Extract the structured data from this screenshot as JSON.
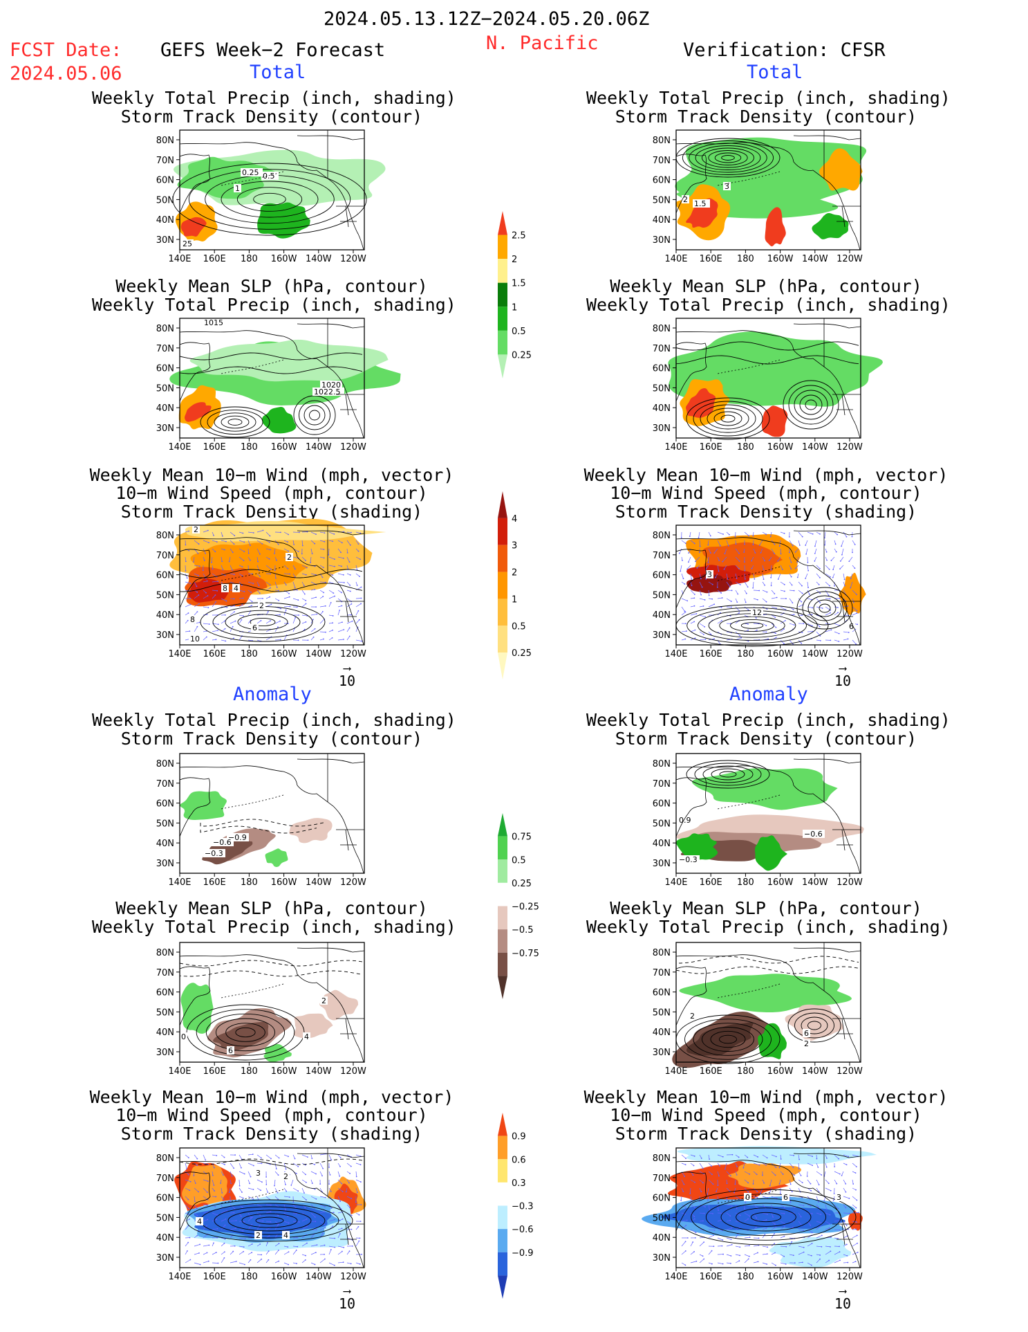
{
  "header": {
    "period": "2024.05.13.12Z−2024.05.20.06Z",
    "region": "N. Pacific",
    "fcst_label": "FCST Date:",
    "fcst_date": "2024.05.06",
    "left_title": "GEFS Week−2 Forecast",
    "right_title": "Verification: CFSR"
  },
  "sections": {
    "total": "Total",
    "anomaly": "Anomaly"
  },
  "titles": {
    "precip_storm": [
      "Weekly Total Precip (inch, shading)",
      "Storm Track Density (contour)"
    ],
    "slp_precip": [
      "Weekly Mean SLP (hPa, contour)",
      "Weekly Total Precip (inch, shading)"
    ],
    "wind_storm": [
      "Weekly Mean 10−m Wind (mph, vector)",
      "10−m Wind Speed (mph, contour)",
      "Storm Track Density (shading)"
    ]
  },
  "axes": {
    "lon_ticks": [
      "140E",
      "160E",
      "180",
      "160W",
      "140W",
      "120W"
    ],
    "lat_ticks": [
      "80N",
      "70N",
      "60N",
      "50N",
      "40N",
      "30N"
    ]
  },
  "vector_scale": "10",
  "colorbars": {
    "precip_total": {
      "levels": [
        "0.25",
        "0.5",
        "1",
        "1.5",
        "2",
        "2.5"
      ],
      "colors": [
        "#b4f0b4",
        "#64dc64",
        "#1eb41e",
        "#0a7d0a",
        "#fff08c",
        "#ffa800",
        "#f03c1e"
      ]
    },
    "storm_total": {
      "levels": [
        "0.25",
        "0.5",
        "1",
        "2",
        "3",
        "4"
      ],
      "colors": [
        "#fff8c0",
        "#ffe080",
        "#ffbe3c",
        "#ff9600",
        "#f05a0a",
        "#d21e0a",
        "#961410"
      ]
    },
    "precip_anom": {
      "levels": [
        "0.75",
        "0.5",
        "0.25",
        "−0.25",
        "−0.5",
        "−0.75"
      ],
      "colors": [
        "#1eaa32",
        "#50d250",
        "#a0eba0",
        "#ffffff",
        "#e6c8be",
        "#b48c82",
        "#785046",
        "#50322a"
      ]
    },
    "storm_anom": {
      "levels": [
        "0.9",
        "0.6",
        "0.3",
        "−0.3",
        "−0.6",
        "−0.9"
      ],
      "colors": [
        "#f04614",
        "#ff9e28",
        "#ffe66e",
        "#ffffff",
        "#bdeeff",
        "#5aaaf0",
        "#2a64dc",
        "#1e3cb4"
      ]
    }
  },
  "panel_labels": {
    "lt1": [
      "0.25",
      "0.5",
      "1",
      "25"
    ],
    "rt1": [
      "3",
      "2",
      "1.5"
    ],
    "lt2": [
      "1015",
      "1020",
      "1022.5"
    ],
    "lt3": [
      "2",
      "2",
      "8",
      "4",
      "2",
      "8",
      "6",
      "10"
    ],
    "rt3": [
      "3",
      "12",
      "6"
    ],
    "la1": [
      "−0.9",
      "−0.6",
      "−0.3"
    ],
    "ra1": [
      "0.9",
      "−0.6",
      "−0.3"
    ],
    "la2": [
      "2",
      "4",
      "6",
      "0"
    ],
    "ra2": [
      "2",
      "6",
      "2"
    ],
    "la3": [
      "3",
      "2",
      "4",
      "2",
      "4"
    ],
    "ra3": [
      "0",
      "6",
      "3"
    ]
  }
}
